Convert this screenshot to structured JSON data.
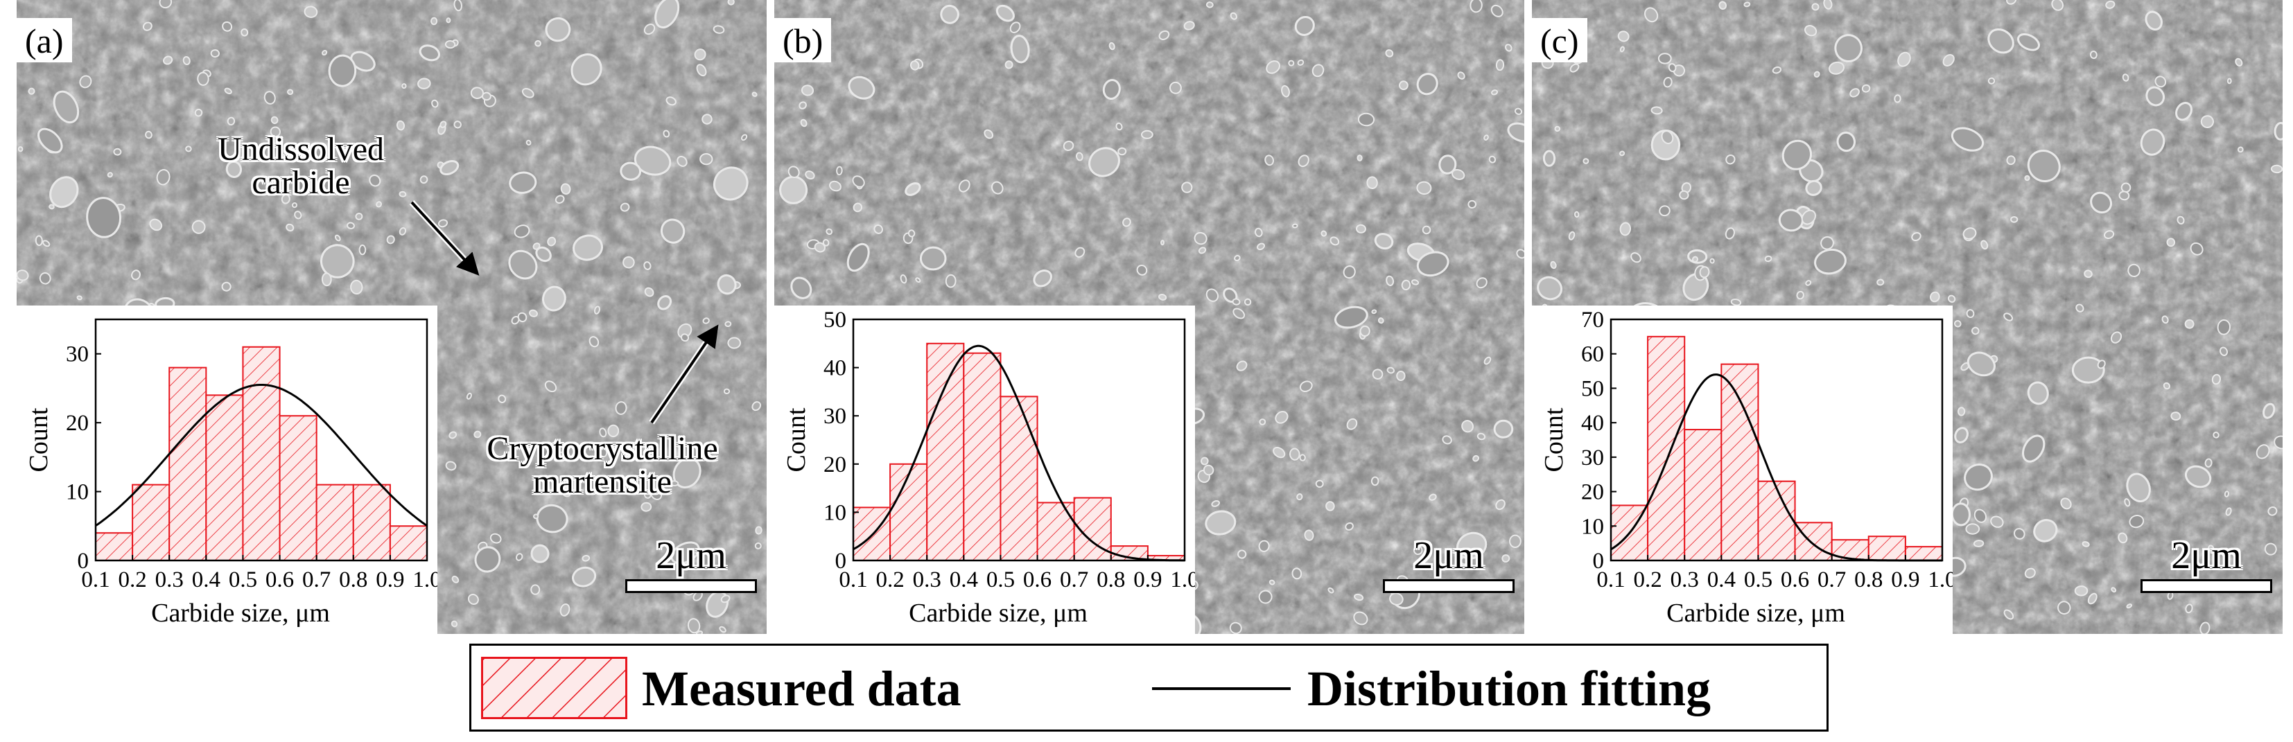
{
  "colors": {
    "bar_fill": "#fdeaea",
    "bar_stroke": "#e8141c",
    "fit_line": "#000000",
    "sem_base": "#8a8a8a"
  },
  "panels": [
    {
      "label": "(a)",
      "scale_bar": "2μm"
    },
    {
      "label": "(b)",
      "scale_bar": "2μm"
    },
    {
      "label": "(c)",
      "scale_bar": "2μm"
    }
  ],
  "annotations": {
    "undissolved_line1": "Undissolved",
    "undissolved_line2": "carbide",
    "crypto_line1": "Cryptocrystalline",
    "crypto_line2": "martensite"
  },
  "legend": {
    "measured": "Measured data",
    "fitting": "Distribution fitting"
  },
  "chart_data": [
    {
      "type": "bar",
      "panel": "(a)",
      "xlabel": "Carbide size, μm",
      "ylabel": "Count",
      "xlim": [
        0.1,
        1.0
      ],
      "ylim": [
        0,
        35
      ],
      "xticks": [
        "0.1",
        "0.2",
        "0.3",
        "0.4",
        "0.5",
        "0.6",
        "0.7",
        "0.8",
        "0.9",
        "1.0"
      ],
      "yticks": [
        "0",
        "10",
        "20",
        "30"
      ],
      "bin_edges": [
        0.1,
        0.2,
        0.3,
        0.4,
        0.5,
        0.6,
        0.7,
        0.8,
        0.9,
        1.0
      ],
      "values": [
        4,
        11,
        28,
        24,
        31,
        21,
        11,
        11,
        5
      ],
      "fit": {
        "type": "normal",
        "mu": 0.55,
        "sigma": 0.25,
        "peak": 25.5
      }
    },
    {
      "type": "bar",
      "panel": "(b)",
      "xlabel": "Carbide size, μm",
      "ylabel": "Count",
      "xlim": [
        0.1,
        1.0
      ],
      "ylim": [
        0,
        50
      ],
      "xticks": [
        "0.1",
        "0.2",
        "0.3",
        "0.4",
        "0.5",
        "0.6",
        "0.7",
        "0.8",
        "0.9",
        "1.0"
      ],
      "yticks": [
        "0",
        "10",
        "20",
        "30",
        "40",
        "50"
      ],
      "bin_edges": [
        0.1,
        0.2,
        0.3,
        0.4,
        0.5,
        0.6,
        0.7,
        0.8,
        0.9,
        1.0
      ],
      "values": [
        11,
        20,
        45,
        43,
        34,
        12,
        13,
        3,
        1
      ],
      "fit": {
        "type": "normal",
        "mu": 0.44,
        "sigma": 0.14,
        "peak": 44.5
      }
    },
    {
      "type": "bar",
      "panel": "(c)",
      "xlabel": "Carbide size, μm",
      "ylabel": "Count",
      "xlim": [
        0.1,
        1.0
      ],
      "ylim": [
        0,
        70
      ],
      "xticks": [
        "0.1",
        "0.2",
        "0.3",
        "0.4",
        "0.5",
        "0.6",
        "0.7",
        "0.8",
        "0.9",
        "1.0"
      ],
      "yticks": [
        "0",
        "10",
        "20",
        "30",
        "40",
        "50",
        "60",
        "70"
      ],
      "bin_edges": [
        0.1,
        0.2,
        0.3,
        0.4,
        0.5,
        0.6,
        0.7,
        0.8,
        0.9,
        1.0
      ],
      "values": [
        16,
        65,
        38,
        57,
        23,
        11,
        6,
        7,
        4
      ],
      "fit": {
        "type": "normal",
        "mu": 0.385,
        "sigma": 0.12,
        "peak": 54
      }
    }
  ]
}
